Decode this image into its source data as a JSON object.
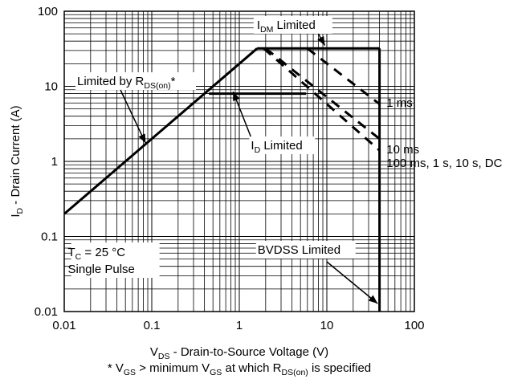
{
  "chart_data": {
    "type": "line",
    "x_scale": "log",
    "y_scale": "log",
    "xlim": [
      0.01,
      100
    ],
    "ylim": [
      0.01,
      100
    ],
    "grid": true,
    "x_ticks": [
      "0.01",
      "0.1",
      "1",
      "10",
      "100"
    ],
    "y_ticks": [
      "100",
      "10",
      "1",
      "0.1",
      "0.01"
    ],
    "ylabel": {
      "main": "I",
      "sub": "D",
      "rest": " - Drain Current (A)"
    },
    "xlabel": {
      "main": "V",
      "sub": "DS",
      "rest": " - Drain-to-Source Voltage (V)"
    },
    "footnote": [
      {
        "t": "* V"
      },
      {
        "t": "GS",
        "sub": true
      },
      {
        "t": " > minimum V"
      },
      {
        "t": "GS",
        "sub": true
      },
      {
        "t": " at which R"
      },
      {
        "t": "DS(on)",
        "sub": true
      },
      {
        "t": " is specified"
      }
    ],
    "series": [
      {
        "id": "rdson",
        "style": "solid",
        "x": [
          0.01,
          1.6
        ],
        "y": [
          0.2,
          32
        ]
      },
      {
        "id": "idm",
        "style": "solid",
        "x": [
          1.6,
          40
        ],
        "y": [
          32,
          32
        ]
      },
      {
        "id": "id",
        "style": "solid",
        "x": [
          0.45,
          5.8
        ],
        "y": [
          8,
          8
        ]
      },
      {
        "id": "bvdss",
        "style": "solid",
        "x": [
          40,
          40
        ],
        "y": [
          32,
          0.01
        ]
      },
      {
        "id": "1ms",
        "style": "dashed",
        "x": [
          6,
          40
        ],
        "y": [
          32,
          5.8
        ]
      },
      {
        "id": "10ms",
        "style": "dashed",
        "x": [
          2,
          40
        ],
        "y": [
          32,
          2
        ]
      },
      {
        "id": "dc",
        "style": "dashed",
        "x": [
          1.9,
          40
        ],
        "y": [
          32,
          1.4
        ]
      }
    ],
    "annotations": {
      "idm": {
        "main": "I",
        "sub": "DM",
        "rest": " Limited"
      },
      "rdson": {
        "main": "Limited by R",
        "sub": "DS(on)",
        "rest": "*"
      },
      "id": {
        "main": "I",
        "sub": "D",
        "rest": " Limited"
      },
      "tc": {
        "main": "T",
        "sub": "C",
        "rest": " = 25 °C"
      },
      "pulse": "Single Pulse",
      "bvdss": "BVDSS Limited",
      "ms1": "1 ms",
      "ms10": "10 ms",
      "dc": "100 ms, 1 s, 10 s, DC"
    }
  }
}
